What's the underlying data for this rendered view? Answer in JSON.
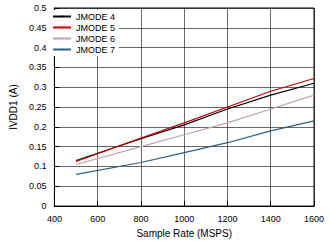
{
  "chart_data": {
    "type": "line",
    "x_label": "Sample Rate (MSPS)",
    "y_label": "IVDD1 (A)",
    "xlim": [
      400,
      1600
    ],
    "xticks": [
      400,
      600,
      800,
      1000,
      1200,
      1400,
      1600
    ],
    "ylim": [
      0,
      0.5
    ],
    "yticks": [
      0,
      0.05,
      0.1,
      0.15,
      0.2,
      0.25,
      0.3,
      0.35,
      0.4,
      0.45,
      0.5
    ],
    "grid": true,
    "legend": "upper left",
    "x": [
      500,
      800,
      1000,
      1200,
      1400,
      1600
    ],
    "series": [
      {
        "name": "JMODE 4",
        "color": "#000000",
        "values": [
          0.115,
          0.17,
          0.205,
          0.245,
          0.28,
          0.31
        ]
      },
      {
        "name": "JMODE 5",
        "color": "#c00000",
        "values": [
          0.113,
          0.172,
          0.21,
          0.25,
          0.29,
          0.322
        ]
      },
      {
        "name": "JMODE 6",
        "color": "#b8a4b4",
        "values": [
          0.105,
          0.15,
          0.18,
          0.21,
          0.245,
          0.28
        ]
      },
      {
        "name": "JMODE 7",
        "color": "#2f5f7f",
        "values": [
          0.08,
          0.11,
          0.135,
          0.16,
          0.19,
          0.215
        ]
      }
    ]
  }
}
